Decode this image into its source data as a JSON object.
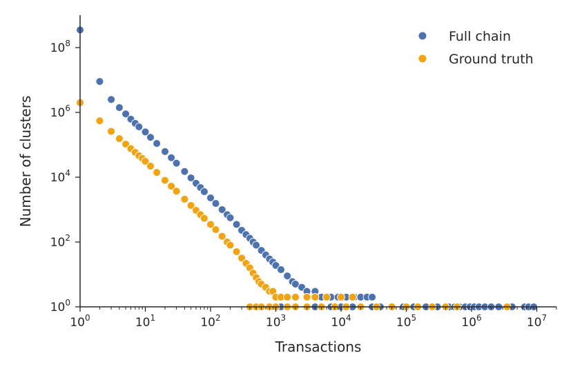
{
  "chart_data": {
    "type": "scatter",
    "xscale": "log",
    "yscale": "log",
    "xlabel": "Transactions",
    "ylabel": "Number of clusters",
    "xlim": [
      1,
      20000000
    ],
    "ylim": [
      1,
      1000000000
    ],
    "x_ticks": [
      {
        "base": "10",
        "exp": "0"
      },
      {
        "base": "10",
        "exp": "1"
      },
      {
        "base": "10",
        "exp": "2"
      },
      {
        "base": "10",
        "exp": "3"
      },
      {
        "base": "10",
        "exp": "4"
      },
      {
        "base": "10",
        "exp": "5"
      },
      {
        "base": "10",
        "exp": "6"
      },
      {
        "base": "10",
        "exp": "7"
      }
    ],
    "y_ticks": [
      {
        "base": "10",
        "exp": "0"
      },
      {
        "base": "10",
        "exp": "2"
      },
      {
        "base": "10",
        "exp": "4"
      },
      {
        "base": "10",
        "exp": "6"
      },
      {
        "base": "10",
        "exp": "8"
      }
    ],
    "legend_position": "top-right",
    "series": [
      {
        "name": "Full chain",
        "color": "#4c72b0",
        "points": [
          [
            1,
            350000000
          ],
          [
            2,
            9000000
          ],
          [
            3,
            2500000
          ],
          [
            4,
            1400000
          ],
          [
            5,
            900000
          ],
          [
            6,
            620000
          ],
          [
            7,
            460000
          ],
          [
            8,
            360000
          ],
          [
            10,
            250000
          ],
          [
            12,
            170000
          ],
          [
            15,
            110000
          ],
          [
            20,
            62000
          ],
          [
            25,
            40000
          ],
          [
            30,
            27000
          ],
          [
            40,
            15000
          ],
          [
            50,
            9500
          ],
          [
            60,
            6500
          ],
          [
            70,
            4800
          ],
          [
            80,
            3600
          ],
          [
            100,
            2300
          ],
          [
            120,
            1550
          ],
          [
            150,
            1000
          ],
          [
            180,
            700
          ],
          [
            200,
            560
          ],
          [
            250,
            350
          ],
          [
            300,
            230
          ],
          [
            350,
            170
          ],
          [
            400,
            130
          ],
          [
            450,
            100
          ],
          [
            500,
            80
          ],
          [
            600,
            55
          ],
          [
            700,
            40
          ],
          [
            800,
            30
          ],
          [
            900,
            24
          ],
          [
            1000,
            19
          ],
          [
            1200,
            14
          ],
          [
            1500,
            9
          ],
          [
            1800,
            6
          ],
          [
            2000,
            5
          ],
          [
            2500,
            4
          ],
          [
            3000,
            3
          ],
          [
            4000,
            3
          ],
          [
            5000,
            2
          ],
          [
            6000,
            2
          ],
          [
            7000,
            2
          ],
          [
            9000,
            2
          ],
          [
            12000,
            2
          ],
          [
            16000,
            2
          ],
          [
            20000,
            2
          ],
          [
            25000,
            2
          ],
          [
            30000,
            2
          ],
          [
            1200,
            1
          ],
          [
            1500,
            1
          ],
          [
            2000,
            1
          ],
          [
            3000,
            1
          ],
          [
            4000,
            1
          ],
          [
            5000,
            1
          ],
          [
            7000,
            1
          ],
          [
            10000,
            1
          ],
          [
            15000,
            1
          ],
          [
            20000,
            1
          ],
          [
            30000,
            1
          ],
          [
            40000,
            1
          ],
          [
            60000,
            1
          ],
          [
            90000,
            1
          ],
          [
            130000,
            1
          ],
          [
            200000,
            1
          ],
          [
            300000,
            1
          ],
          [
            450000,
            1
          ],
          [
            550000,
            1
          ],
          [
            650000,
            1
          ],
          [
            800000,
            1
          ],
          [
            950000,
            1
          ],
          [
            1100000,
            1
          ],
          [
            1300000,
            1
          ],
          [
            1600000,
            1
          ],
          [
            2000000,
            1
          ],
          [
            2600000,
            1
          ],
          [
            3400000,
            1
          ],
          [
            4200000,
            1
          ],
          [
            6500000,
            1
          ],
          [
            7500000,
            1
          ],
          [
            9000000,
            1
          ]
        ]
      },
      {
        "name": "Ground truth",
        "color": "#f3a30f",
        "points": [
          [
            1,
            2000000
          ],
          [
            2,
            550000
          ],
          [
            3,
            260000
          ],
          [
            4,
            155000
          ],
          [
            5,
            105000
          ],
          [
            6,
            76000
          ],
          [
            7,
            58000
          ],
          [
            8,
            46000
          ],
          [
            9,
            38000
          ],
          [
            10,
            31000
          ],
          [
            12,
            22000
          ],
          [
            15,
            14000
          ],
          [
            20,
            8000
          ],
          [
            25,
            5300
          ],
          [
            30,
            3700
          ],
          [
            40,
            2100
          ],
          [
            50,
            1350
          ],
          [
            60,
            950
          ],
          [
            70,
            700
          ],
          [
            80,
            540
          ],
          [
            100,
            350
          ],
          [
            120,
            240
          ],
          [
            150,
            150
          ],
          [
            180,
            100
          ],
          [
            200,
            80
          ],
          [
            250,
            50
          ],
          [
            300,
            32
          ],
          [
            350,
            22
          ],
          [
            400,
            16
          ],
          [
            450,
            11
          ],
          [
            500,
            8
          ],
          [
            550,
            6
          ],
          [
            600,
            5
          ],
          [
            700,
            4
          ],
          [
            800,
            3
          ],
          [
            900,
            3
          ],
          [
            1000,
            2
          ],
          [
            1200,
            2
          ],
          [
            1500,
            2
          ],
          [
            2000,
            2
          ],
          [
            3000,
            2
          ],
          [
            4000,
            2
          ],
          [
            6000,
            2
          ],
          [
            10000,
            2
          ],
          [
            15000,
            2
          ],
          [
            400,
            1
          ],
          [
            500,
            1
          ],
          [
            600,
            1
          ],
          [
            800,
            1
          ],
          [
            1000,
            1
          ],
          [
            1500,
            1
          ],
          [
            2000,
            1
          ],
          [
            3000,
            1
          ],
          [
            5000,
            1
          ],
          [
            8000,
            1
          ],
          [
            12000,
            1
          ],
          [
            20000,
            1
          ],
          [
            35000,
            1
          ],
          [
            60000,
            1
          ],
          [
            100000,
            1
          ],
          [
            150000,
            1
          ],
          [
            250000,
            1
          ],
          [
            400000,
            1
          ],
          [
            600000,
            1
          ],
          [
            3500000,
            1
          ]
        ]
      }
    ]
  }
}
